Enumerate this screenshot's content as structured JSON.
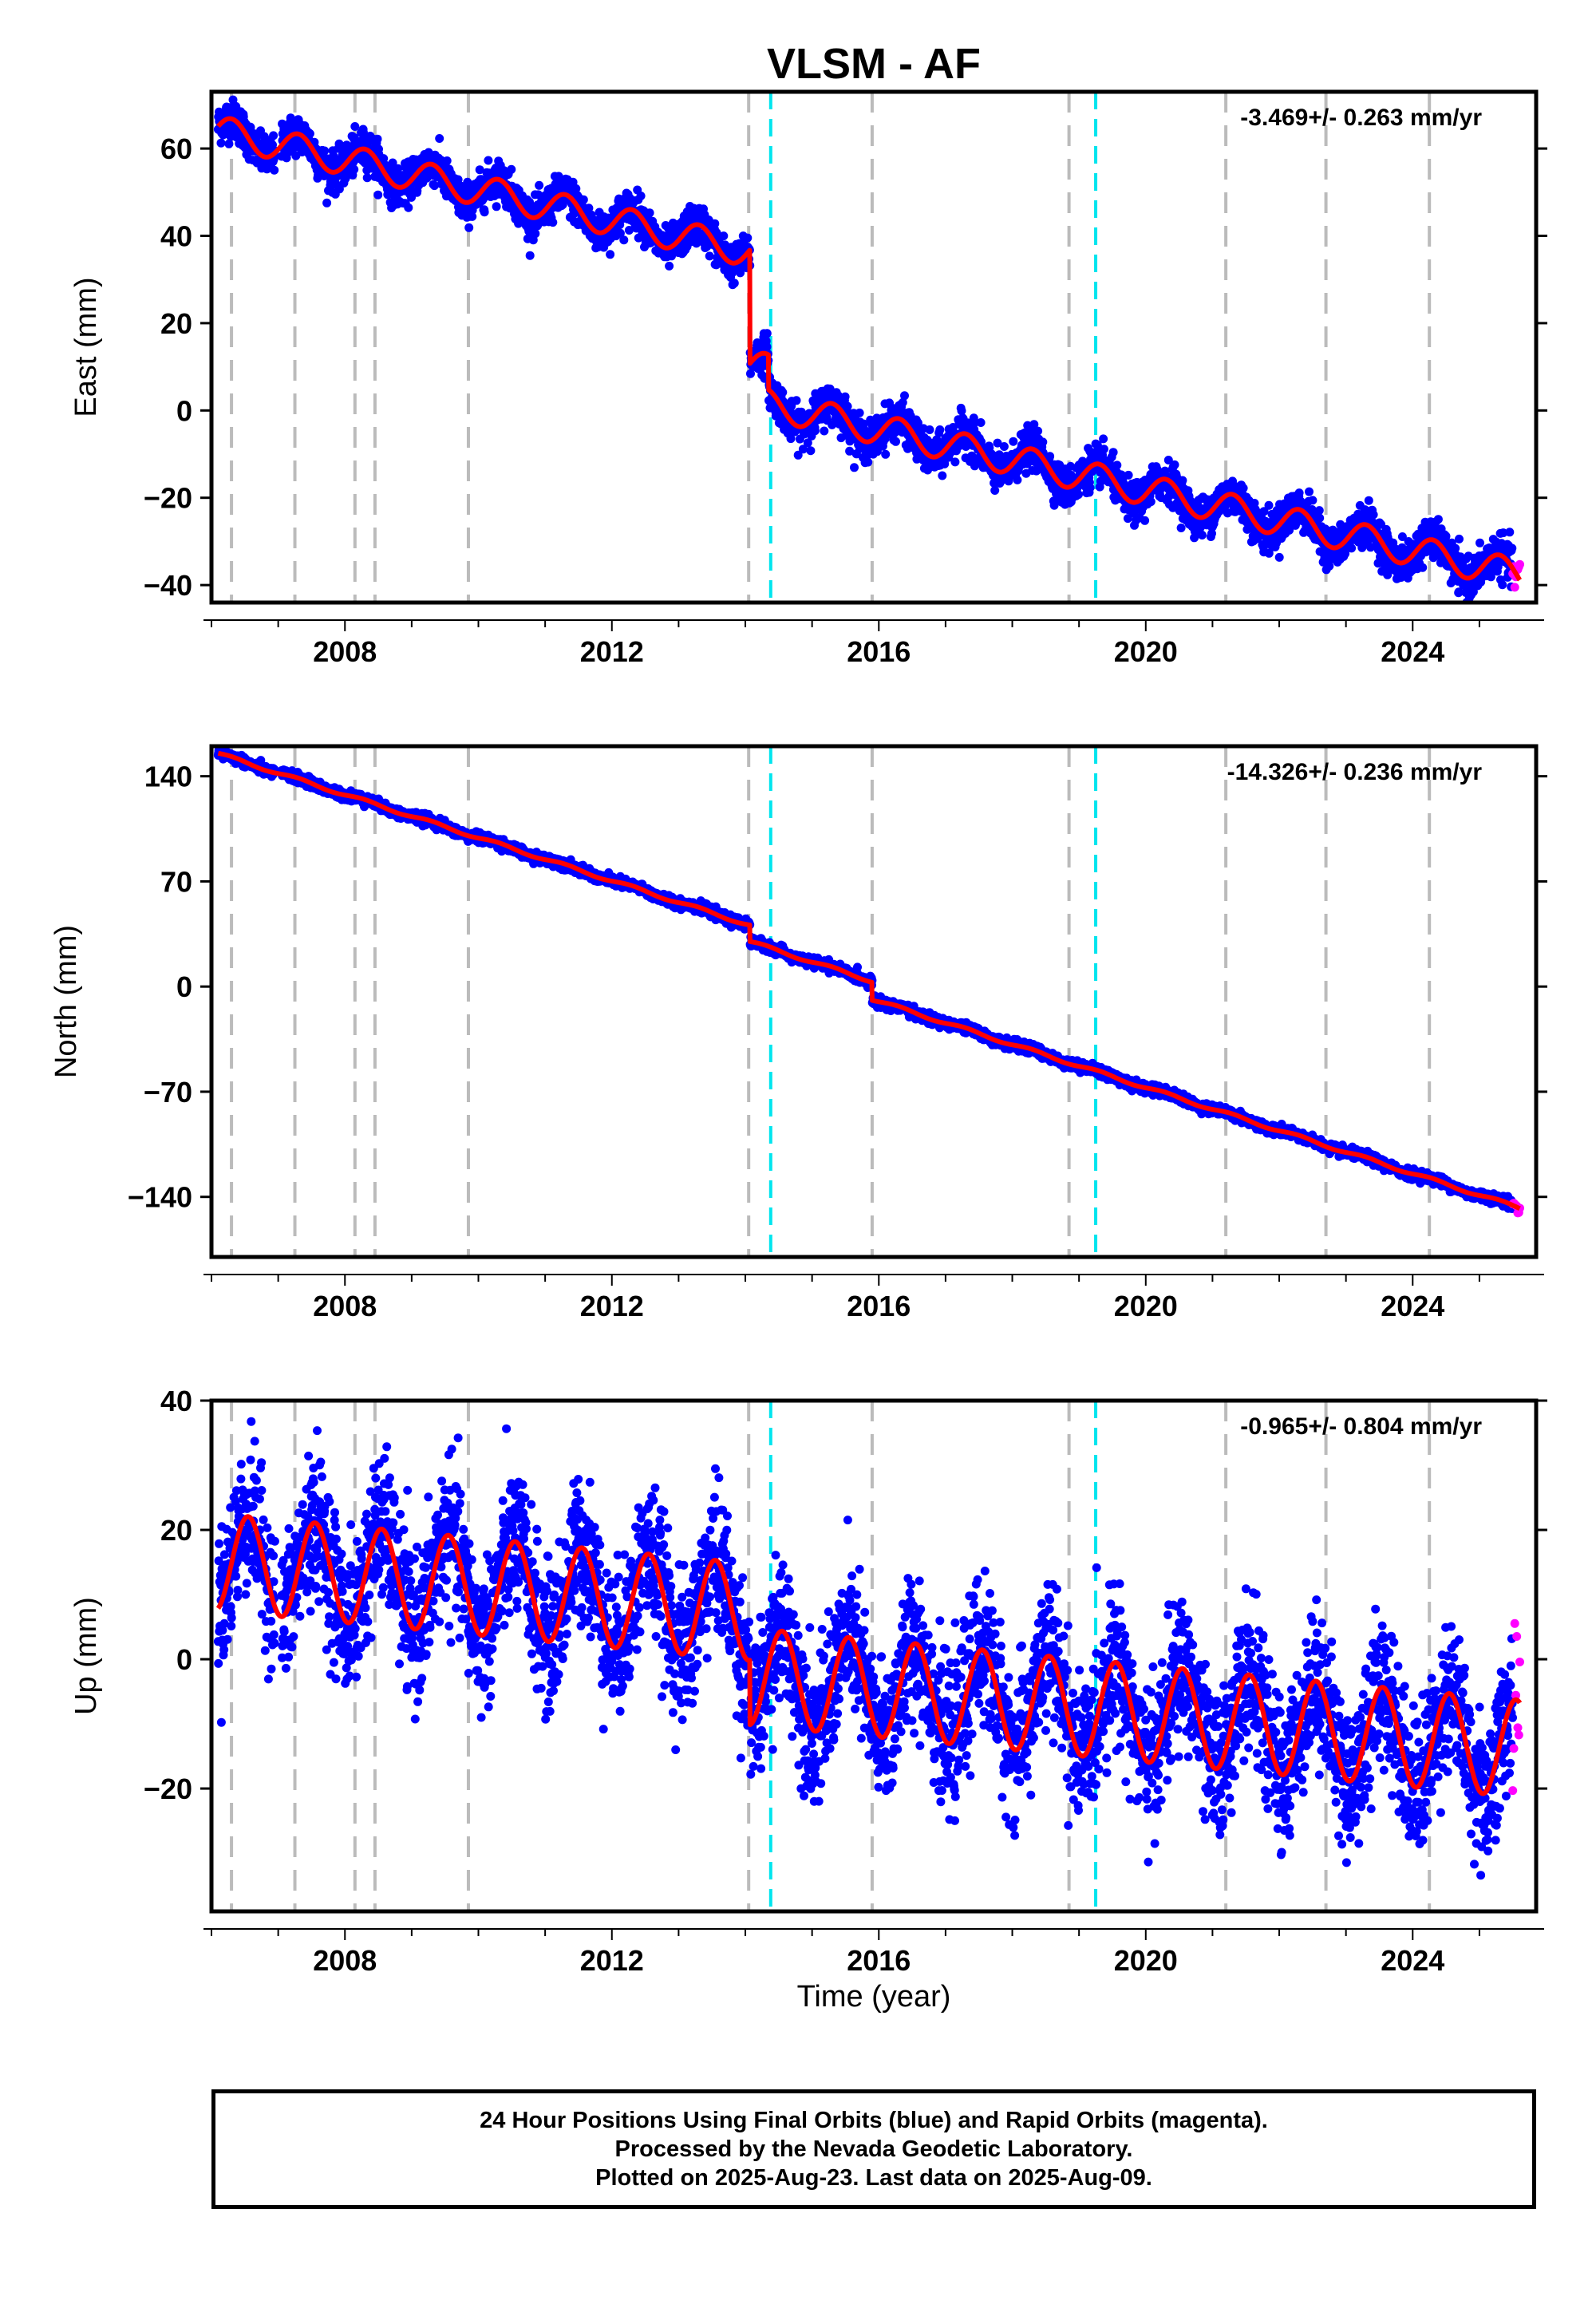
{
  "title": "VLSM - AF",
  "xlabel": "Time (year)",
  "footer": {
    "line1": "24 Hour Positions Using Final Orbits (blue) and Rapid Orbits (magenta).",
    "line2": "Processed by the Nevada Geodetic Laboratory.",
    "line3": "Plotted on 2025-Aug-23. Last data on 2025-Aug-09."
  },
  "colors": {
    "final_points": "#0000ff",
    "rapid_points": "#ff00ff",
    "model_fit": "#ff0000",
    "equipment_change_line": "#bbbbbb",
    "earthquake_line": "#00e5ee"
  },
  "chart_data": [
    {
      "type": "scatter",
      "panel": "east",
      "ylabel": "East (mm)",
      "rate_label": "-3.469+/- 0.263 mm/yr",
      "xlim": [
        2006.0,
        2025.85
      ],
      "ylim": [
        -44,
        73
      ],
      "yticks": [
        -40,
        -20,
        0,
        20,
        40,
        60
      ],
      "xticks": [
        2008,
        2012,
        2016,
        2020,
        2024
      ],
      "grid": false,
      "data_start": 2006.1,
      "final_end": 2025.5,
      "rapid_end": 2025.61,
      "model": {
        "intercept": 64.0,
        "rate": -3.469,
        "ref_year": 2006.1,
        "annual_amplitude": 3.5,
        "annual_peak_phase": 0.3,
        "offsets": [
          {
            "year": 2014.07,
            "step": -26.0
          },
          {
            "year": 2014.35,
            "step": -8.0
          }
        ],
        "noise": 2.2
      },
      "series": [
        {
          "role": "final_points",
          "values": "daily positions"
        },
        {
          "role": "rapid_points",
          "values": "daily positions"
        },
        {
          "role": "model_fit",
          "values": "trend + seasonal + offsets"
        }
      ]
    },
    {
      "type": "scatter",
      "panel": "north",
      "ylabel": "North (mm)",
      "rate_label": "-14.326+/- 0.236 mm/yr",
      "xlim": [
        2006.0,
        2025.85
      ],
      "ylim": [
        -180,
        160
      ],
      "yticks": [
        -140,
        -70,
        0,
        70,
        140
      ],
      "xticks": [
        2008,
        2012,
        2016,
        2020,
        2024
      ],
      "grid": false,
      "data_start": 2006.1,
      "final_end": 2025.5,
      "rapid_end": 2025.61,
      "model": {
        "intercept": 155.0,
        "rate": -14.326,
        "ref_year": 2006.1,
        "annual_amplitude": 1.0,
        "annual_peak_phase": 0.3,
        "offsets": [
          {
            "year": 2014.07,
            "step": -11.0
          },
          {
            "year": 2015.9,
            "step": -12.0
          }
        ],
        "noise": 1.6
      },
      "series": [
        {
          "role": "final_points",
          "values": "daily positions"
        },
        {
          "role": "rapid_points",
          "values": "daily positions"
        },
        {
          "role": "model_fit",
          "values": "trend + seasonal + offsets"
        }
      ]
    },
    {
      "type": "scatter",
      "panel": "up",
      "ylabel": "Up (mm)",
      "rate_label": "-0.965+/- 0.804 mm/yr",
      "xlim": [
        2006.0,
        2025.85
      ],
      "ylim": [
        -39,
        40
      ],
      "yticks": [
        -20,
        0,
        20,
        40
      ],
      "xticks": [
        2008,
        2012,
        2016,
        2020,
        2024
      ],
      "grid": false,
      "data_start": 2006.1,
      "final_end": 2025.5,
      "rapid_end": 2025.61,
      "model": {
        "intercept": 15.0,
        "rate": -0.965,
        "ref_year": 2006.1,
        "annual_amplitude": 7.5,
        "annual_peak_phase": 0.55,
        "offsets": [
          {
            "year": 2014.07,
            "step": -10.0
          }
        ],
        "noise": 5.5
      },
      "series": [
        {
          "role": "final_points",
          "values": "daily positions"
        },
        {
          "role": "rapid_points",
          "values": "daily positions"
        },
        {
          "role": "model_fit",
          "values": "trend + seasonal + offsets"
        }
      ]
    }
  ],
  "event_lines": {
    "equipment_changes": [
      2006.3,
      2007.25,
      2008.15,
      2008.45,
      2009.85,
      2014.05,
      2015.9,
      2018.85,
      2021.2,
      2022.7,
      2024.25
    ],
    "earthquakes": [
      2014.38,
      2019.25
    ]
  }
}
